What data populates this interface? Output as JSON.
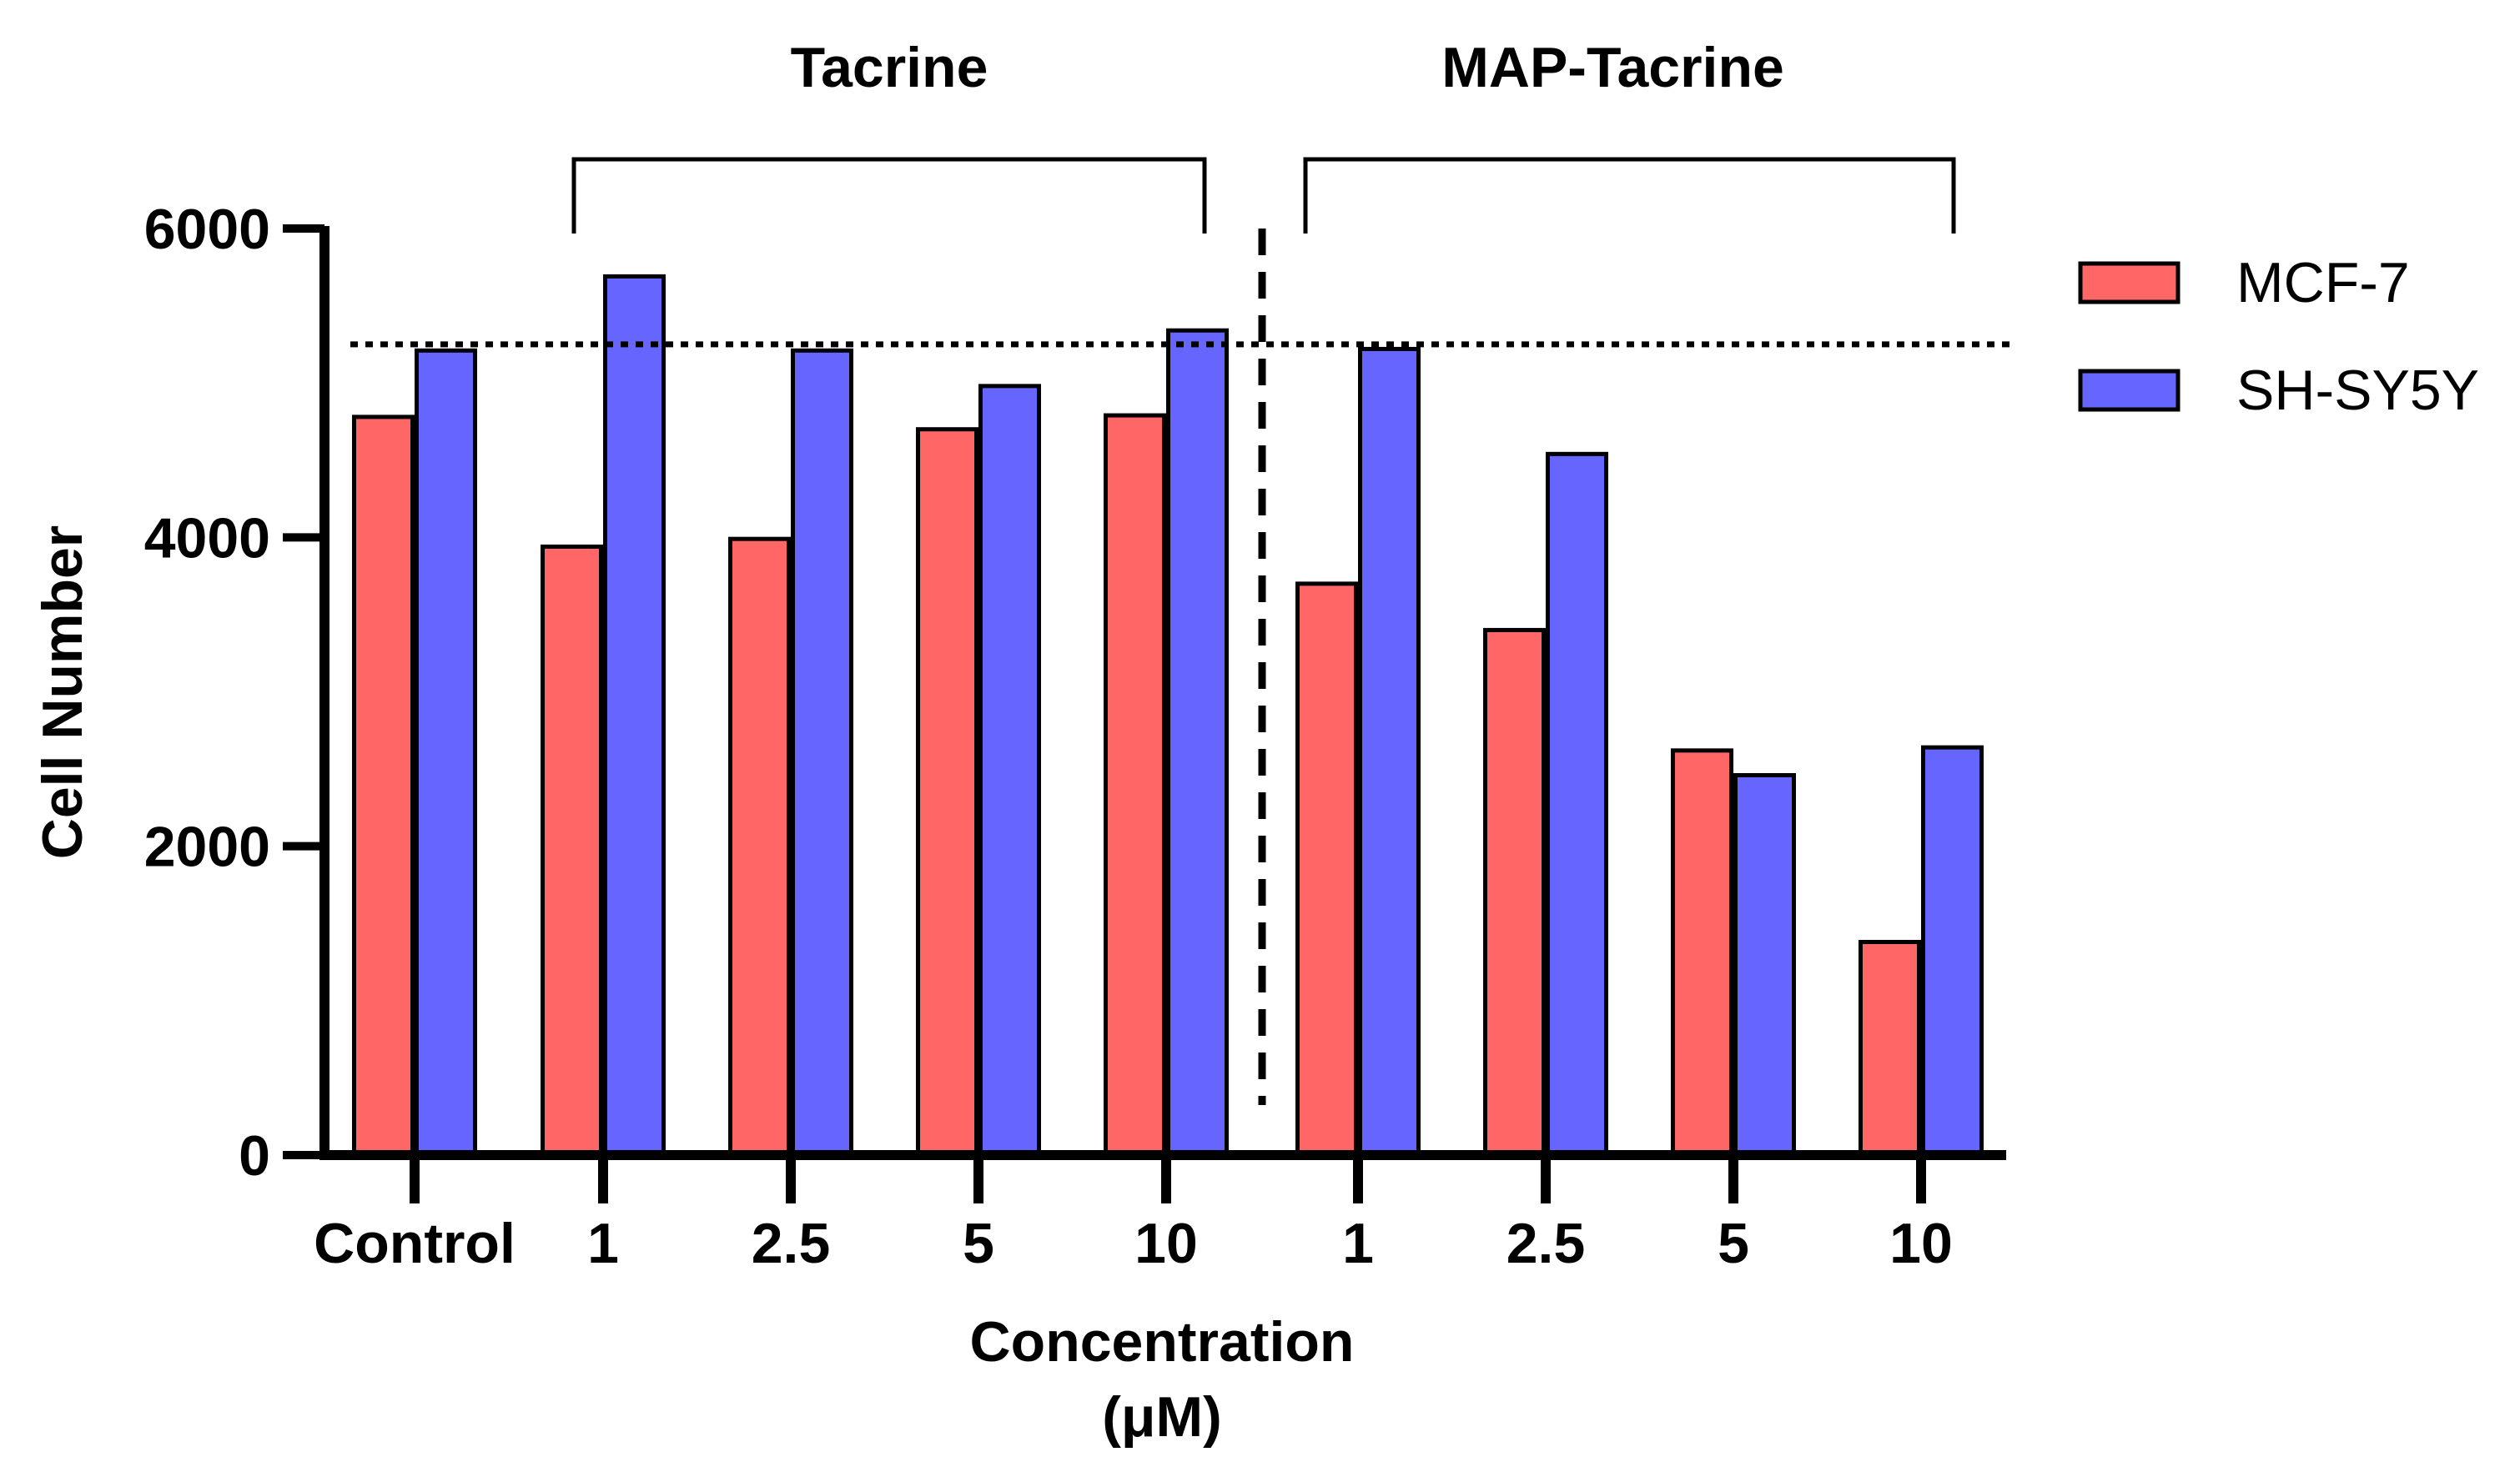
{
  "chart_data": {
    "type": "bar",
    "ylabel": "Cell Number",
    "xlabel_line1": "Concentration",
    "xlabel_line2": "(μM)",
    "ylim": [
      0,
      6000
    ],
    "yticks": [
      "0",
      "2000",
      "4000",
      "6000"
    ],
    "ytick_values": [
      0,
      2000,
      4000,
      6000
    ],
    "categories": [
      "Control",
      "1",
      "2.5",
      "5",
      "10",
      "1",
      "2.5",
      "5",
      "10"
    ],
    "series": [
      {
        "name": "MCF-7",
        "color": "#ff6666",
        "values": [
          4780,
          3940,
          3990,
          4700,
          4790,
          3700,
          3400,
          2620,
          1380
        ]
      },
      {
        "name": "SH-SY5Y",
        "color": "#6666ff",
        "values": [
          5210,
          5690,
          5210,
          4980,
          5340,
          5220,
          4540,
          2460,
          2640
        ]
      }
    ],
    "reference_line": 5250,
    "groups": [
      {
        "label": "Tacrine",
        "from_index": 1,
        "to_index": 4
      },
      {
        "label": "MAP-Tacrine",
        "from_index": 5,
        "to_index": 8
      }
    ],
    "legend_position": "right"
  }
}
